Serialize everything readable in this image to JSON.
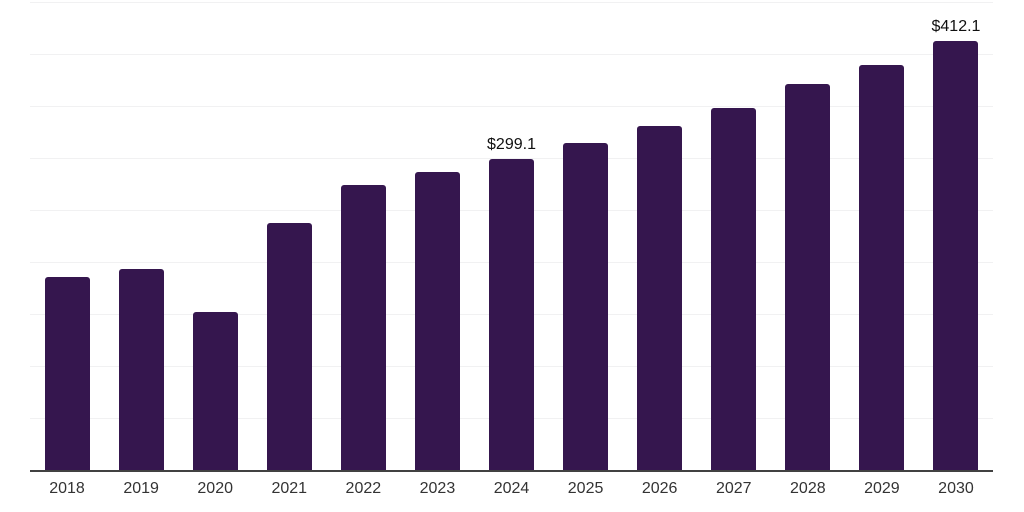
{
  "chart_data": {
    "type": "bar",
    "title": "",
    "xlabel": "",
    "ylabel": "",
    "categories": [
      "2018",
      "2019",
      "2020",
      "2021",
      "2022",
      "2023",
      "2024",
      "2025",
      "2026",
      "2027",
      "2028",
      "2029",
      "2030"
    ],
    "values": [
      186.0,
      193.6,
      152.0,
      237.3,
      274.0,
      286.5,
      299.1,
      314.1,
      330.5,
      348.1,
      371.5,
      389.7,
      412.1
    ],
    "data_labels": [
      null,
      null,
      null,
      null,
      null,
      null,
      "$299.1",
      null,
      null,
      null,
      null,
      null,
      "$412.1"
    ],
    "ylim": [
      0,
      450
    ],
    "gridline_step": 50,
    "grid": "horizontal",
    "legend": "none",
    "y_axis_labels_visible": false,
    "bar_color": "#35164E",
    "gridline_color": "#f1f1f2",
    "axis_line_color": "#414141",
    "tick_label_color": "#333333",
    "data_label_color": "#101010",
    "background_color": "#ffffff"
  }
}
